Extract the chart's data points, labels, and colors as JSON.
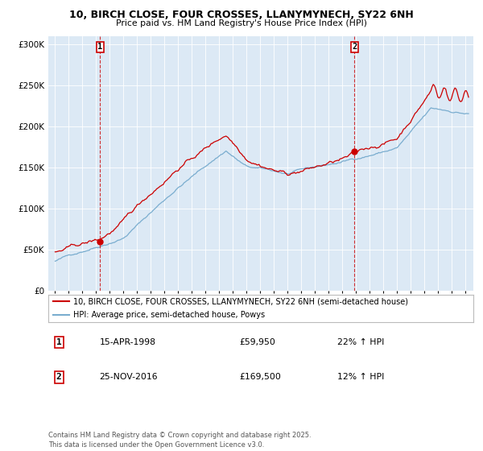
{
  "title1": "10, BIRCH CLOSE, FOUR CROSSES, LLANYMYNECH, SY22 6NH",
  "title2": "Price paid vs. HM Land Registry's House Price Index (HPI)",
  "legend_line1": "10, BIRCH CLOSE, FOUR CROSSES, LLANYMYNECH, SY22 6NH (semi-detached house)",
  "legend_line2": "HPI: Average price, semi-detached house, Powys",
  "annotation1_date": "15-APR-1998",
  "annotation1_price": "£59,950",
  "annotation1_hpi": "22% ↑ HPI",
  "annotation2_date": "25-NOV-2016",
  "annotation2_price": "£169,500",
  "annotation2_hpi": "12% ↑ HPI",
  "footnote": "Contains HM Land Registry data © Crown copyright and database right 2025.\nThis data is licensed under the Open Government Licence v3.0.",
  "line1_color": "#cc0000",
  "line2_color": "#7aadcf",
  "bg_color": "#dce9f5",
  "vline_color": "#cc0000",
  "marker_color": "#cc0000",
  "sale1_year": 1998.29,
  "sale1_value": 59950,
  "sale2_year": 2016.9,
  "sale2_value": 169500,
  "ylim": [
    0,
    310000
  ],
  "yticks": [
    0,
    50000,
    100000,
    150000,
    200000,
    250000,
    300000
  ],
  "ytick_labels": [
    "£0",
    "£50K",
    "£100K",
    "£150K",
    "£200K",
    "£250K",
    "£300K"
  ]
}
